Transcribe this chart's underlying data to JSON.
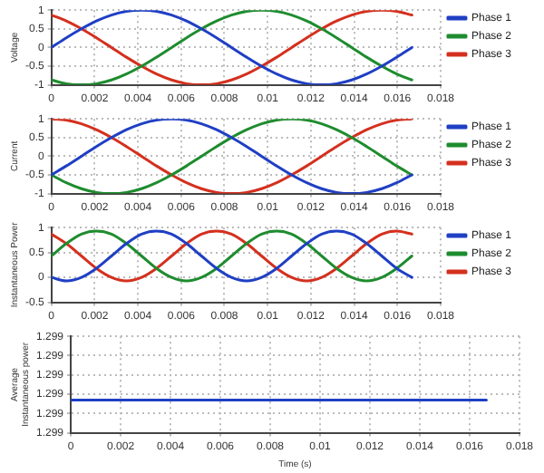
{
  "chart_data": [
    {
      "type": "line",
      "ylabel": "Voltage",
      "x": [
        0,
        0.00069,
        0.00139,
        0.00208,
        0.00278,
        0.00347,
        0.00417,
        0.00486,
        0.00556,
        0.00625,
        0.00694,
        0.00764,
        0.00833,
        0.00903,
        0.00972,
        0.01042,
        0.01111,
        0.01181,
        0.0125,
        0.01319,
        0.01389,
        0.01458,
        0.01528,
        0.01597,
        0.01667
      ],
      "xlim": [
        0,
        0.018
      ],
      "xticks": [
        0,
        0.002,
        0.004,
        0.006,
        0.008,
        0.01,
        0.012,
        0.014,
        0.016,
        0.018
      ],
      "ylim": [
        -1,
        1
      ],
      "yticks": [
        -1,
        -0.5,
        0,
        0.5,
        1
      ],
      "grid": true,
      "legend": "top right",
      "marker": "none",
      "line_style": "solid",
      "series": [
        {
          "name": "Phase 1",
          "color": "#1f3fc4",
          "values": [
            0,
            0.26,
            0.5,
            0.71,
            0.87,
            0.97,
            1,
            0.97,
            0.87,
            0.71,
            0.5,
            0.26,
            0,
            -0.26,
            -0.5,
            -0.71,
            -0.87,
            -0.97,
            -1,
            -0.97,
            -0.87,
            -0.71,
            -0.5,
            -0.26,
            0
          ]
        },
        {
          "name": "Phase 2",
          "color": "#1e8c2e",
          "values": [
            -0.87,
            -0.97,
            -1,
            -0.97,
            -0.87,
            -0.71,
            -0.5,
            -0.26,
            0,
            0.26,
            0.5,
            0.71,
            0.87,
            0.97,
            1,
            0.97,
            0.87,
            0.71,
            0.5,
            0.26,
            0,
            -0.26,
            -0.5,
            -0.71,
            -0.87
          ]
        },
        {
          "name": "Phase 3",
          "color": "#d4301e",
          "values": [
            0.87,
            0.71,
            0.5,
            0.26,
            0,
            -0.26,
            -0.5,
            -0.71,
            -0.87,
            -0.97,
            -1,
            -0.97,
            -0.87,
            -0.71,
            -0.5,
            -0.26,
            0,
            0.26,
            0.5,
            0.71,
            0.87,
            0.97,
            1,
            0.97,
            0.87
          ]
        }
      ]
    },
    {
      "type": "line",
      "ylabel": "Current",
      "x": [
        0,
        0.00069,
        0.00139,
        0.00208,
        0.00278,
        0.00347,
        0.00417,
        0.00486,
        0.00556,
        0.00625,
        0.00694,
        0.00764,
        0.00833,
        0.00903,
        0.00972,
        0.01042,
        0.01111,
        0.01181,
        0.0125,
        0.01319,
        0.01389,
        0.01458,
        0.01528,
        0.01597,
        0.01667
      ],
      "xlim": [
        0,
        0.018
      ],
      "xticks": [
        0,
        0.002,
        0.004,
        0.006,
        0.008,
        0.01,
        0.012,
        0.014,
        0.016,
        0.018
      ],
      "ylim": [
        -1,
        1
      ],
      "yticks": [
        -1,
        -0.5,
        0,
        0.5,
        1
      ],
      "grid": true,
      "legend": "top right",
      "marker": "none",
      "line_style": "solid",
      "series": [
        {
          "name": "Phase 1",
          "color": "#1f3fc4",
          "values": [
            -0.5,
            -0.26,
            0,
            0.26,
            0.5,
            0.71,
            0.87,
            0.97,
            1,
            0.97,
            0.87,
            0.71,
            0.5,
            0.26,
            0,
            -0.26,
            -0.5,
            -0.71,
            -0.87,
            -0.97,
            -1,
            -0.97,
            -0.87,
            -0.71,
            -0.5
          ]
        },
        {
          "name": "Phase 2",
          "color": "#1e8c2e",
          "values": [
            -0.5,
            -0.71,
            -0.87,
            -0.97,
            -1,
            -0.97,
            -0.87,
            -0.71,
            -0.5,
            -0.26,
            0,
            0.26,
            0.5,
            0.71,
            0.87,
            0.97,
            1,
            0.97,
            0.87,
            0.71,
            0.5,
            0.26,
            0,
            -0.26,
            -0.5
          ]
        },
        {
          "name": "Phase 3",
          "color": "#d4301e",
          "values": [
            1,
            0.97,
            0.87,
            0.71,
            0.5,
            0.26,
            0,
            -0.26,
            -0.5,
            -0.71,
            -0.87,
            -0.97,
            -1,
            -0.97,
            -0.87,
            -0.71,
            -0.5,
            -0.26,
            0,
            0.26,
            0.5,
            0.71,
            0.87,
            0.97,
            1
          ]
        }
      ]
    },
    {
      "type": "line",
      "ylabel": "Instantaneous Power",
      "x": [
        0,
        0.00069,
        0.00139,
        0.00208,
        0.00278,
        0.00347,
        0.00417,
        0.00486,
        0.00556,
        0.00625,
        0.00694,
        0.00764,
        0.00833,
        0.00903,
        0.00972,
        0.01042,
        0.01111,
        0.01181,
        0.0125,
        0.01319,
        0.01389,
        0.01458,
        0.01528,
        0.01597,
        0.01667
      ],
      "xlim": [
        0,
        0.018
      ],
      "xticks": [
        0,
        0.002,
        0.004,
        0.006,
        0.008,
        0.01,
        0.012,
        0.014,
        0.016,
        0.018
      ],
      "ylim": [
        -0.5,
        1
      ],
      "yticks": [
        -0.5,
        0,
        0.5,
        1
      ],
      "grid": true,
      "legend": "top right",
      "marker": "none",
      "line_style": "solid",
      "series": [
        {
          "name": "Phase 1",
          "color": "#1f3fc4",
          "values": [
            0,
            -0.07,
            0,
            0.18,
            0.43,
            0.68,
            0.87,
            0.93,
            0.87,
            0.68,
            0.43,
            0.18,
            0,
            -0.07,
            0,
            0.18,
            0.43,
            0.68,
            0.87,
            0.93,
            0.87,
            0.68,
            0.43,
            0.18,
            0
          ]
        },
        {
          "name": "Phase 2",
          "color": "#1e8c2e",
          "values": [
            0.43,
            0.68,
            0.87,
            0.93,
            0.87,
            0.68,
            0.43,
            0.18,
            0,
            -0.07,
            0,
            0.18,
            0.43,
            0.68,
            0.87,
            0.93,
            0.87,
            0.68,
            0.43,
            0.18,
            0,
            -0.07,
            0,
            0.18,
            0.43
          ]
        },
        {
          "name": "Phase 3",
          "color": "#d4301e",
          "values": [
            0.87,
            0.68,
            0.43,
            0.18,
            0,
            -0.07,
            0,
            0.18,
            0.43,
            0.68,
            0.87,
            0.93,
            0.87,
            0.68,
            0.43,
            0.18,
            0,
            -0.07,
            0,
            0.18,
            0.43,
            0.68,
            0.87,
            0.93,
            0.87
          ]
        }
      ]
    },
    {
      "type": "line",
      "ylabel": "Average Instantaneous power",
      "xlabel": "Time (s)",
      "x": [
        0,
        0.01667
      ],
      "xlim": [
        0,
        0.018
      ],
      "xticks": [
        0,
        0.002,
        0.004,
        0.006,
        0.008,
        0.01,
        0.012,
        0.014,
        0.016,
        0.018
      ],
      "ylim": [
        1.29895,
        1.29905
      ],
      "yticks": [
        {
          "value": 1.29895,
          "label": "1.299"
        },
        {
          "value": 1.29897,
          "label": "1.299"
        },
        {
          "value": 1.29899,
          "label": "1.299"
        },
        {
          "value": 1.29901,
          "label": "1.299"
        },
        {
          "value": 1.29903,
          "label": "1.299"
        },
        {
          "value": 1.29905,
          "label": "1.299"
        }
      ],
      "grid": true,
      "marker": "none",
      "line_style": "solid",
      "series": [
        {
          "color": "#1f3fc4",
          "values": [
            1.298984,
            1.298984
          ]
        }
      ]
    }
  ]
}
